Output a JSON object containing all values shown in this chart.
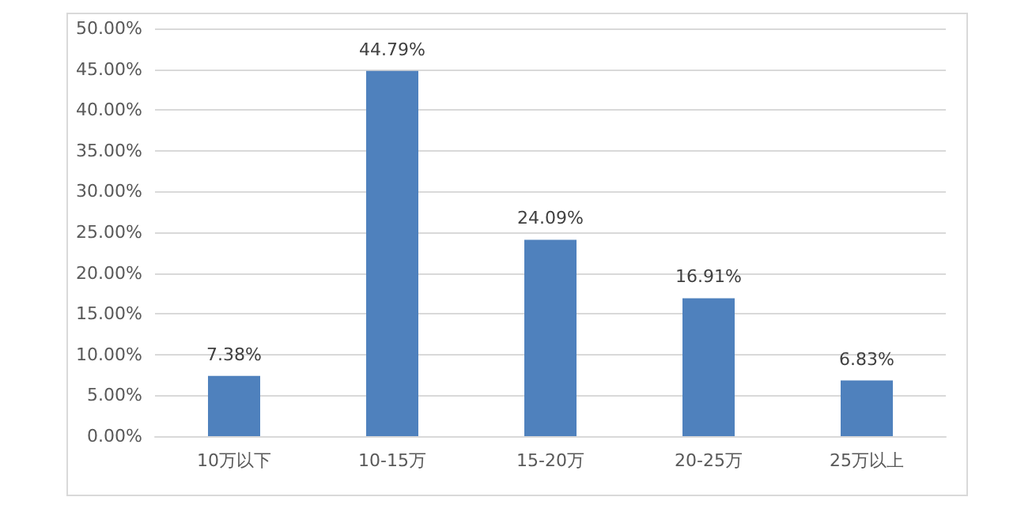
{
  "chart_data": {
    "type": "bar",
    "categories": [
      "10万以下",
      "10-15万",
      "15-20万",
      "20-25万",
      "25万以上"
    ],
    "values": [
      7.38,
      44.79,
      24.09,
      16.91,
      6.83
    ],
    "value_labels": [
      "7.38%",
      "44.79%",
      "24.09%",
      "16.91%",
      "6.83%"
    ],
    "color": "#4f81bd",
    "ylim": [
      0,
      50
    ],
    "yticks": [
      {
        "value": 0,
        "label": "0.00%"
      },
      {
        "value": 5,
        "label": "5.00%"
      },
      {
        "value": 10,
        "label": "10.00%"
      },
      {
        "value": 15,
        "label": "15.00%"
      },
      {
        "value": 20,
        "label": "20.00%"
      },
      {
        "value": 25,
        "label": "25.00%"
      },
      {
        "value": 30,
        "label": "30.00%"
      },
      {
        "value": 35,
        "label": "35.00%"
      },
      {
        "value": 40,
        "label": "40.00%"
      },
      {
        "value": 45,
        "label": "45.00%"
      },
      {
        "value": 50,
        "label": "50.00%"
      }
    ],
    "grid": "y"
  }
}
